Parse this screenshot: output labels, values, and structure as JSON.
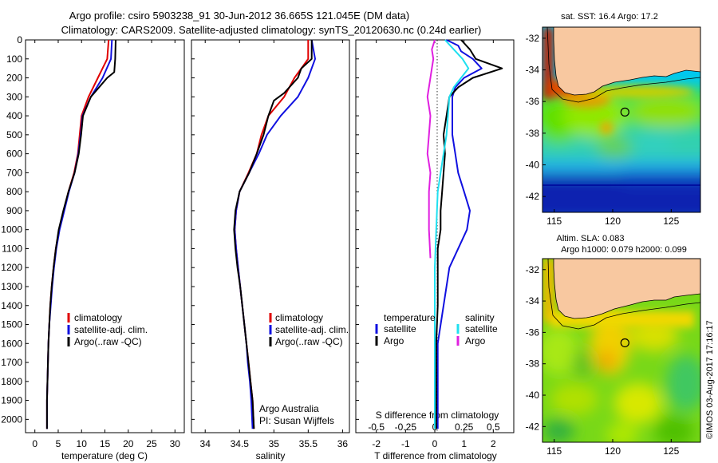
{
  "title_line1": "Argo profile: csiro 5903238_91 30-Jun-2012 36.665S 121.045E (DM data)",
  "title_line2": "Climatology: CARS2009. Satellite-adjusted climatology: synTS_20120630.nc (0.24d earlier)",
  "footer_stamp": "©IMOS 03-Aug-2017 17:16:17",
  "colors": {
    "climatology": "#e00000",
    "satellite": "#1010e0",
    "argo": "#000000",
    "sat_salinity": "#20e0f0",
    "argo_salinity": "#e020e0",
    "land": "#f8c8a0"
  },
  "chart_data": [
    {
      "type": "line",
      "id": "temperature",
      "xlabel": "temperature (deg C)",
      "xticks": [
        0,
        5,
        10,
        15,
        20,
        25,
        30
      ],
      "xlim": [
        -2,
        32
      ],
      "yticks": [
        0,
        100,
        200,
        300,
        400,
        500,
        600,
        700,
        800,
        900,
        1000,
        1100,
        1200,
        1300,
        1400,
        1500,
        1600,
        1700,
        1800,
        1900,
        2000
      ],
      "ylim": [
        0,
        2070
      ],
      "legend": [
        "climatology",
        "satellite-adj. clim.",
        "Argo(..raw -QC)"
      ],
      "series": [
        {
          "name": "climatology",
          "color": "#e00000",
          "x": [
            15.8,
            15.5,
            13.5,
            11.5,
            10,
            9.6,
            9.2,
            8.4,
            7.2,
            6.2,
            5.2,
            4.5,
            4,
            3.6,
            3.3,
            3.1,
            2.9,
            2.8,
            2.7,
            2.6,
            2.6
          ],
          "y": [
            0,
            100,
            200,
            300,
            400,
            500,
            600,
            700,
            800,
            900,
            1000,
            1100,
            1200,
            1300,
            1400,
            1500,
            1600,
            1700,
            1800,
            1900,
            2050
          ]
        },
        {
          "name": "satellite-adj. clim.",
          "color": "#1010e0",
          "x": [
            16.5,
            16.3,
            14.5,
            12,
            10.2,
            9.8,
            9.3,
            8.5,
            7.3,
            6.3,
            5.3,
            4.6,
            4.1,
            3.7,
            3.4,
            3.1,
            2.9,
            2.8,
            2.7,
            2.6,
            2.6
          ],
          "y": [
            0,
            100,
            200,
            300,
            400,
            500,
            600,
            700,
            800,
            900,
            1000,
            1100,
            1200,
            1300,
            1400,
            1500,
            1600,
            1700,
            1800,
            1900,
            2050
          ]
        },
        {
          "name": "Argo(..raw -QC)",
          "color": "#000000",
          "x": [
            17.3,
            17.2,
            17,
            15.5,
            12,
            10.3,
            9.9,
            9.4,
            8.5,
            7.2,
            6.1,
            5.1,
            4.5,
            4,
            3.6,
            3.3,
            3.1,
            2.9,
            2.8,
            2.7,
            2.6,
            2.6
          ],
          "y": [
            0,
            100,
            170,
            200,
            300,
            400,
            500,
            600,
            700,
            800,
            900,
            1000,
            1100,
            1200,
            1300,
            1400,
            1500,
            1600,
            1700,
            1800,
            1900,
            2050
          ]
        }
      ]
    },
    {
      "type": "line",
      "id": "salinity",
      "xlabel": "salinity",
      "xticks": [
        34,
        34.5,
        35,
        35.5,
        36
      ],
      "xlim": [
        33.8,
        36.1
      ],
      "ylim": [
        0,
        2070
      ],
      "legend": [
        "climatology",
        "satellite-adj. clim.",
        "Argo(..raw -QC)"
      ],
      "annotations": [
        "Argo Australia",
        "PI: Susan Wijffels"
      ],
      "series": [
        {
          "name": "climatology",
          "color": "#e00000",
          "x": [
            35.5,
            35.5,
            35.3,
            35.15,
            34.92,
            34.82,
            34.75,
            34.63,
            34.5,
            34.45,
            34.43,
            34.45,
            34.48,
            34.51,
            34.54,
            34.57,
            34.6,
            34.63,
            34.66,
            34.69,
            34.71
          ],
          "y": [
            0,
            100,
            200,
            300,
            400,
            500,
            600,
            700,
            800,
            900,
            1000,
            1100,
            1200,
            1300,
            1400,
            1500,
            1600,
            1700,
            1800,
            1900,
            2050
          ]
        },
        {
          "name": "satellite-adj. clim.",
          "color": "#1010e0",
          "x": [
            35.55,
            35.6,
            35.5,
            35.35,
            35.1,
            34.9,
            34.78,
            34.64,
            34.5,
            34.45,
            34.43,
            34.45,
            34.48,
            34.51,
            34.54,
            34.57,
            34.6,
            34.62,
            34.65,
            34.67,
            34.69
          ],
          "y": [
            0,
            100,
            200,
            300,
            400,
            500,
            600,
            700,
            800,
            900,
            1000,
            1100,
            1200,
            1300,
            1400,
            1500,
            1600,
            1700,
            1800,
            1900,
            2050
          ]
        },
        {
          "name": "Argo(..raw -QC)",
          "color": "#000000",
          "x": [
            35.55,
            35.55,
            35.4,
            35.35,
            35.15,
            35.0,
            34.92,
            34.85,
            34.75,
            34.64,
            34.5,
            34.44,
            34.42,
            34.44,
            34.47,
            34.51,
            34.54,
            34.57,
            34.6,
            34.63,
            34.66,
            34.69,
            34.71
          ],
          "y": [
            0,
            100,
            150,
            200,
            280,
            320,
            400,
            500,
            600,
            700,
            800,
            900,
            1000,
            1100,
            1200,
            1300,
            1400,
            1500,
            1600,
            1700,
            1800,
            1900,
            2050
          ]
        }
      ]
    },
    {
      "type": "line",
      "id": "differences",
      "xlabel": "T difference from climatology",
      "xticks": [
        -2,
        -1,
        0,
        1,
        2
      ],
      "xlim": [
        -2.7,
        2.7
      ],
      "top_xlabel": "S difference from climatology",
      "top_xticks": [
        "-0.5",
        "-0.25",
        "0",
        "0.25",
        "0.5"
      ],
      "ylim": [
        0,
        2070
      ],
      "legend_left_title": "temperature",
      "legend_left": [
        "satellite",
        "Argo"
      ],
      "legend_right_title": "salinity",
      "legend_right": [
        "satellite",
        "Argo"
      ],
      "series": [
        {
          "name": "satellite",
          "quantity": "temperature",
          "color": "#1010e0",
          "x": [
            0.4,
            0.8,
            0.9,
            1.3,
            1.6,
            1.0,
            0.7,
            0.6,
            0.6,
            0.6,
            0.7,
            0.8,
            1.0,
            1.2,
            1.1,
            0.8,
            0.5,
            0.3,
            0.1,
            0.1,
            0.1
          ],
          "y": [
            0,
            30,
            60,
            100,
            150,
            200,
            250,
            300,
            400,
            500,
            600,
            700,
            800,
            900,
            1000,
            1100,
            1200,
            1400,
            1600,
            1800,
            2050
          ]
        },
        {
          "name": "Argo",
          "quantity": "temperature",
          "color": "#000000",
          "x": [
            0.9,
            1.2,
            1.4,
            2.3,
            1.3,
            0.8,
            0.5,
            0.4,
            0.3,
            0.35,
            0.3,
            0.25,
            0.2,
            0.2,
            0.1,
            0.1,
            0.1,
            0.05,
            0.05,
            0.05
          ],
          "y": [
            0,
            50,
            100,
            150,
            200,
            250,
            300,
            400,
            500,
            600,
            700,
            800,
            900,
            1000,
            1100,
            1200,
            1400,
            1600,
            1800,
            2050
          ]
        },
        {
          "name": "satellite",
          "quantity": "salinity",
          "color": "#20e0f0",
          "x": [
            0.35,
            0.65,
            0.95,
            1.15,
            0.9,
            0.65,
            0.5,
            0.45,
            0.4,
            0.3,
            0.2,
            0.1,
            0.05,
            0.0,
            0.0,
            0.0
          ],
          "y": [
            0,
            50,
            100,
            150,
            200,
            250,
            300,
            400,
            500,
            600,
            700,
            800,
            1000,
            1200,
            1600,
            2050
          ]
        },
        {
          "name": "Argo",
          "quantity": "salinity",
          "color": "#e020e0",
          "x": [
            0.0,
            -0.1,
            -0.05,
            -0.1,
            -0.15,
            -0.25,
            -0.15,
            -0.2,
            -0.25,
            -0.15,
            -0.2,
            -0.2,
            -0.2,
            -0.15
          ],
          "y": [
            0,
            50,
            100,
            150,
            200,
            300,
            400,
            500,
            600,
            700,
            800,
            900,
            1000,
            1150
          ]
        }
      ]
    },
    {
      "type": "heatmap",
      "id": "sst-map",
      "title": "sat. SST: 16.4  Argo: 17.2",
      "xticks": [
        115,
        120,
        125
      ],
      "yticks": [
        -32,
        -34,
        -36,
        -38,
        -40,
        -42
      ],
      "xlim": [
        114,
        127.5
      ],
      "ylim": [
        -43,
        -31.3
      ],
      "marker": {
        "lon": 121.045,
        "lat": -36.665
      }
    },
    {
      "type": "heatmap",
      "id": "sla-map",
      "title_line1": "Altim. SLA: 0.083",
      "title_line2": "Argo h1000: 0.079 h2000: 0.099",
      "xticks": [
        115,
        120,
        125
      ],
      "yticks": [
        -32,
        -34,
        -36,
        -38,
        -40,
        -42
      ],
      "xlim": [
        114,
        127.5
      ],
      "ylim": [
        -43,
        -31.3
      ],
      "marker": {
        "lon": 121.045,
        "lat": -36.665
      }
    }
  ]
}
